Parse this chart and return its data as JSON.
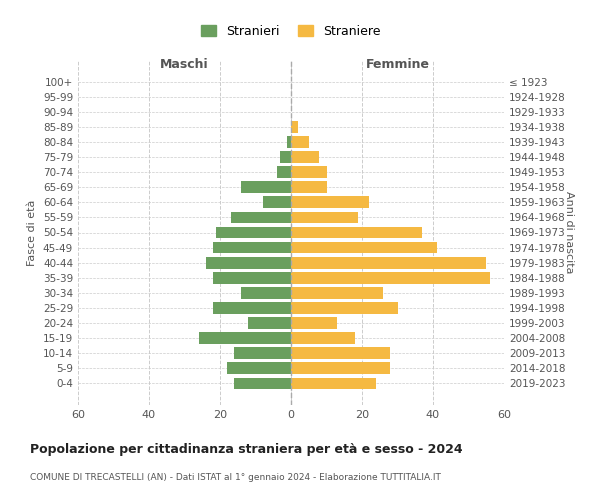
{
  "age_groups": [
    "0-4",
    "5-9",
    "10-14",
    "15-19",
    "20-24",
    "25-29",
    "30-34",
    "35-39",
    "40-44",
    "45-49",
    "50-54",
    "55-59",
    "60-64",
    "65-69",
    "70-74",
    "75-79",
    "80-84",
    "85-89",
    "90-94",
    "95-99",
    "100+"
  ],
  "birth_years": [
    "2019-2023",
    "2014-2018",
    "2009-2013",
    "2004-2008",
    "1999-2003",
    "1994-1998",
    "1989-1993",
    "1984-1988",
    "1979-1983",
    "1974-1978",
    "1969-1973",
    "1964-1968",
    "1959-1963",
    "1954-1958",
    "1949-1953",
    "1944-1948",
    "1939-1943",
    "1934-1938",
    "1929-1933",
    "1924-1928",
    "≤ 1923"
  ],
  "males": [
    16,
    18,
    16,
    26,
    12,
    22,
    14,
    22,
    24,
    22,
    21,
    17,
    8,
    14,
    4,
    3,
    1,
    0,
    0,
    0,
    0
  ],
  "females": [
    24,
    28,
    28,
    18,
    13,
    30,
    26,
    56,
    55,
    41,
    37,
    19,
    22,
    10,
    10,
    8,
    5,
    2,
    0,
    0,
    0
  ],
  "male_color": "#6a9f5e",
  "female_color": "#f5b942",
  "background_color": "#ffffff",
  "grid_color": "#cccccc",
  "title": "Popolazione per cittadinanza straniera per età e sesso - 2024",
  "subtitle": "COMUNE DI TRECASTELLI (AN) - Dati ISTAT al 1° gennaio 2024 - Elaborazione TUTTITALIA.IT",
  "legend_male": "Stranieri",
  "legend_female": "Straniere",
  "xlabel_left": "Maschi",
  "xlabel_right": "Femmine",
  "ylabel_left": "Fasce di età",
  "ylabel_right": "Anni di nascita",
  "xlim": 60
}
